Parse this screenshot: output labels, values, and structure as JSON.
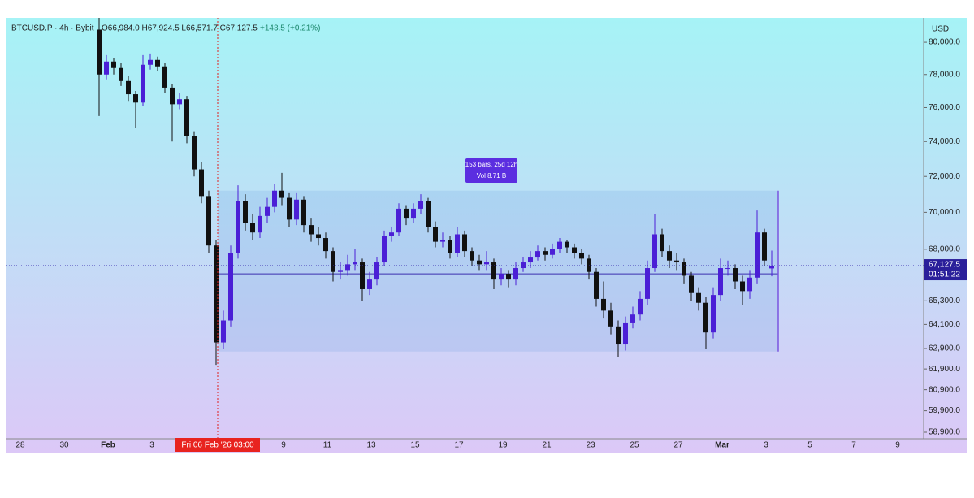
{
  "chart_data": {
    "type": "candlestick",
    "header": {
      "symbol": "BTCUSD.P · 4h · Bybit",
      "ohlc": "O66,984.0 H67,924.5 L66,571.7 C67,127.5",
      "change": "+143.5 (+0.21%)"
    },
    "currency": "USD",
    "crosshair_label": "Fri 06 Feb '26  03:00",
    "range_info": {
      "bars": "153 bars, 25d 12h",
      "volume": "Vol 8.71 B",
      "high": 71200,
      "low": 62750,
      "mid": 66700
    },
    "last_price_label": "67,127.5",
    "countdown": "01:51:22",
    "log_scale": true,
    "up_color": "#4b1fd6",
    "down_color": "#111111",
    "x_labels": [
      "28",
      "30",
      "Feb",
      "3",
      null,
      null,
      "9",
      "11",
      "13",
      "15",
      "17",
      "19",
      "21",
      "23",
      "25",
      "27",
      "Mar",
      "3",
      "5",
      "7",
      "9"
    ],
    "open": [
      80800,
      78000,
      78800,
      78400,
      77600,
      76800,
      76300,
      78600,
      78900,
      78500,
      77200,
      76200,
      76500,
      74300,
      72400,
      70900,
      68200,
      63200,
      64300,
      67800,
      70600,
      69400,
      68900,
      69800,
      70300,
      71200,
      70800,
      69600,
      70700,
      69300,
      68800,
      68600,
      67900,
      66800,
      66900,
      67200,
      67300,
      65900,
      66400,
      67300,
      68700,
      68900,
      70200,
      69700,
      70200,
      70600,
      69200,
      68400,
      68500,
      67800,
      68800,
      67900,
      67400,
      67200,
      67300,
      66400,
      66700,
      66400,
      67000,
      67300,
      67600,
      67900,
      67700,
      68000,
      68400,
      68100,
      67800,
      67500,
      66800,
      65400,
      64800,
      64000,
      63100,
      64200,
      64600,
      65400,
      67000,
      68800,
      67900,
      67400,
      67300,
      66600,
      65700,
      65200,
      63700,
      65600,
      67000,
      67000,
      66300,
      65800,
      66500,
      68900,
      66984.0
    ],
    "high": [
      81550,
      79200,
      79000,
      78700,
      77900,
      77000,
      79200,
      79300,
      79100,
      78700,
      77400,
      76900,
      76700,
      74600,
      72800,
      71200,
      68500,
      64800,
      68200,
      71500,
      71000,
      69900,
      70300,
      70800,
      71600,
      72200,
      71100,
      71100,
      70900,
      69700,
      69200,
      68900,
      68100,
      67300,
      67700,
      68000,
      67500,
      66800,
      67600,
      69000,
      69200,
      70500,
      70400,
      70500,
      71000,
      70800,
      69500,
      68900,
      68700,
      69200,
      69000,
      68100,
      67700,
      67900,
      67500,
      67000,
      66900,
      67300,
      67600,
      67900,
      68200,
      68100,
      68300,
      68600,
      68500,
      68300,
      68000,
      67700,
      67000,
      66300,
      65200,
      64300,
      64500,
      65000,
      65800,
      67400,
      69900,
      69100,
      68200,
      67800,
      67500,
      66800,
      66000,
      65500,
      66000,
      67500,
      67400,
      67200,
      66600,
      66900,
      70100,
      69100,
      67924.5
    ],
    "low": [
      75500,
      77700,
      78000,
      77300,
      76400,
      74800,
      76100,
      78300,
      78200,
      76900,
      74000,
      75900,
      73900,
      72000,
      70500,
      67800,
      62100,
      62900,
      64000,
      67500,
      69000,
      68500,
      68600,
      69400,
      70000,
      70400,
      69200,
      69300,
      68900,
      68400,
      68200,
      67500,
      66300,
      66400,
      66600,
      66900,
      65300,
      65600,
      66100,
      67100,
      68400,
      68700,
      69300,
      69400,
      69900,
      68900,
      68100,
      68100,
      67500,
      67600,
      67600,
      67100,
      66900,
      66900,
      65900,
      66100,
      66000,
      66100,
      66800,
      67000,
      67400,
      67400,
      67500,
      67800,
      67800,
      67500,
      67200,
      66400,
      65000,
      64400,
      63600,
      62500,
      62800,
      63900,
      64300,
      65100,
      66800,
      67600,
      67000,
      66900,
      66200,
      65300,
      64800,
      62900,
      63400,
      65300,
      66600,
      65900,
      65100,
      65400,
      66200,
      67100,
      66571.7
    ],
    "close": [
      78000,
      78800,
      78400,
      77600,
      76800,
      76300,
      78600,
      78900,
      78500,
      77200,
      76200,
      76500,
      74300,
      72400,
      70900,
      68200,
      63200,
      64300,
      67800,
      70600,
      69400,
      68900,
      69800,
      70300,
      71200,
      70800,
      69600,
      70700,
      69300,
      68800,
      68600,
      67900,
      66800,
      66900,
      67200,
      67300,
      65900,
      66400,
      67300,
      68700,
      68900,
      70200,
      69700,
      70200,
      70600,
      69200,
      68400,
      68500,
      67800,
      68800,
      67900,
      67400,
      67200,
      67300,
      66400,
      66700,
      66400,
      67000,
      67300,
      67600,
      67900,
      67700,
      68000,
      68400,
      68100,
      67800,
      67500,
      66800,
      65400,
      64800,
      64000,
      63100,
      64200,
      64600,
      65400,
      67000,
      68800,
      67900,
      67400,
      67300,
      66600,
      65700,
      65200,
      63700,
      65600,
      67000,
      67000,
      66300,
      65800,
      66500,
      68900,
      67400,
      67127.5
    ],
    "ylim": [
      58600,
      81550
    ],
    "yticks": [
      {
        "value": 58900,
        "label": "58,900.0"
      },
      {
        "value": 59900,
        "label": "59,900.0"
      },
      {
        "value": 60900,
        "label": "60,900.0"
      },
      {
        "value": 61900,
        "label": "61,900.0"
      },
      {
        "value": 62900,
        "label": "62,900.0"
      },
      {
        "value": 64100,
        "label": "64,100.0"
      },
      {
        "value": 65300,
        "label": "65,300.0"
      },
      {
        "value": 68000,
        "label": "68,000.0"
      },
      {
        "value": 70000,
        "label": "70,000.0"
      },
      {
        "value": 72000,
        "label": "72,000.0"
      },
      {
        "value": 74000,
        "label": "74,000.0"
      },
      {
        "value": 76000,
        "label": "76,000.0"
      },
      {
        "value": 78000,
        "label": "78,000.0"
      },
      {
        "value": 80000,
        "label": "80,000.0"
      }
    ]
  }
}
